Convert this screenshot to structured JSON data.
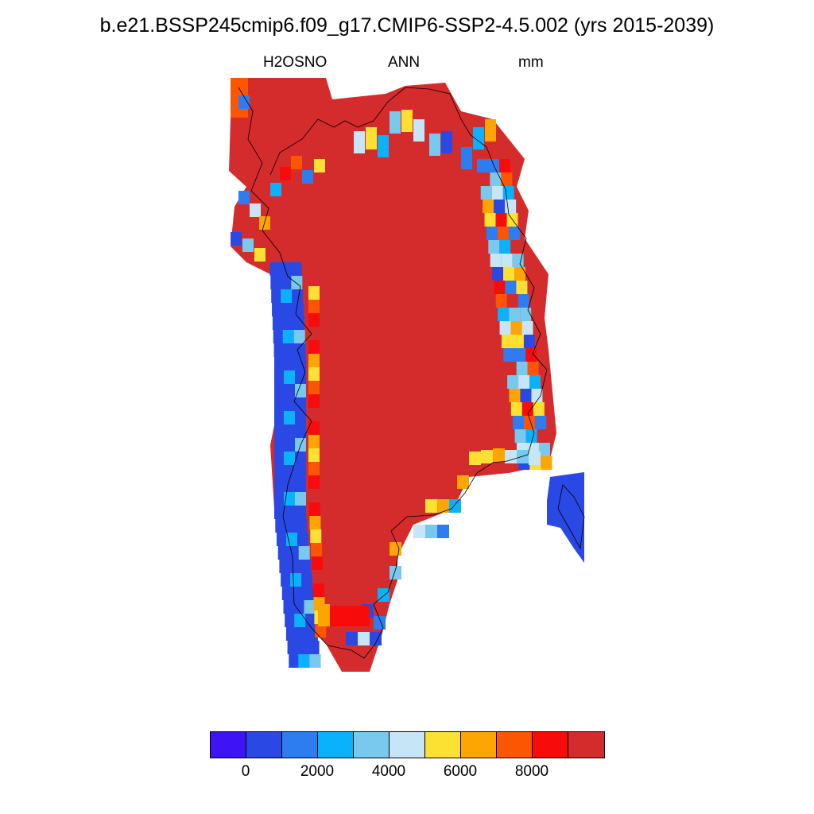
{
  "title": "b.e21.BSSP245cmip6.f09_g17.CMIP6-SSP2-4.5.002 (yrs 2015-2039)",
  "left_label": "H2OSNO",
  "center_label": "ANN",
  "right_label": "mm",
  "map": {
    "variable": "H2OSNO",
    "region": "Greenland",
    "dominant_level_index": 10
  },
  "colorbar": {
    "colors": [
      "#3e13f5",
      "#2a48e4",
      "#2e7df0",
      "#0ab2fb",
      "#79c8ee",
      "#c6e5f6",
      "#fde132",
      "#fda502",
      "#fd5602",
      "#f80b0b",
      "#d42c2c"
    ],
    "tick_labels": [
      "0",
      "2000",
      "4000",
      "6000",
      "8000"
    ]
  }
}
